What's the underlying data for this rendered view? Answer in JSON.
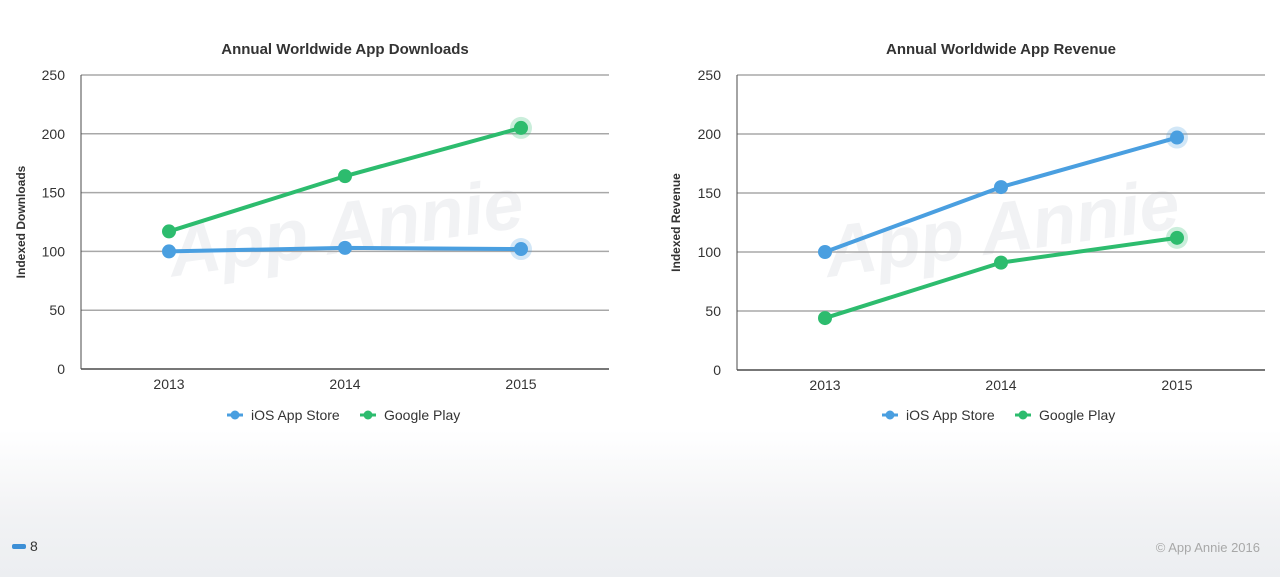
{
  "colors": {
    "ios": "#4a9fe0",
    "google": "#2dbc6e",
    "grid": "#a8a8a8",
    "axis": "#4a4a4a"
  },
  "watermark": "App Annie",
  "chart_data": [
    {
      "type": "line",
      "title": "Annual Worldwide App Downloads",
      "xlabel": "",
      "ylabel": "Indexed Downloads",
      "categories": [
        "2013",
        "2014",
        "2015"
      ],
      "ylim": [
        0,
        250
      ],
      "yticks": [
        "0",
        "50",
        "100",
        "150",
        "200",
        "250"
      ],
      "grid": true,
      "legend": "bottom-center",
      "series": [
        {
          "name": "iOS App Store",
          "values": [
            100,
            103,
            102
          ]
        },
        {
          "name": "Google Play",
          "values": [
            117,
            164,
            205
          ]
        }
      ]
    },
    {
      "type": "line",
      "title": "Annual Worldwide App Revenue",
      "xlabel": "",
      "ylabel": "Indexed Revenue",
      "categories": [
        "2013",
        "2014",
        "2015"
      ],
      "ylim": [
        0,
        250
      ],
      "yticks": [
        "0",
        "50",
        "100",
        "150",
        "200",
        "250"
      ],
      "grid": true,
      "legend": "bottom-center",
      "series": [
        {
          "name": "iOS App Store",
          "values": [
            100,
            155,
            197
          ]
        },
        {
          "name": "Google Play",
          "values": [
            44,
            91,
            112
          ]
        }
      ]
    }
  ],
  "footer": {
    "page_number": "8",
    "copyright": "© App Annie 2016"
  }
}
